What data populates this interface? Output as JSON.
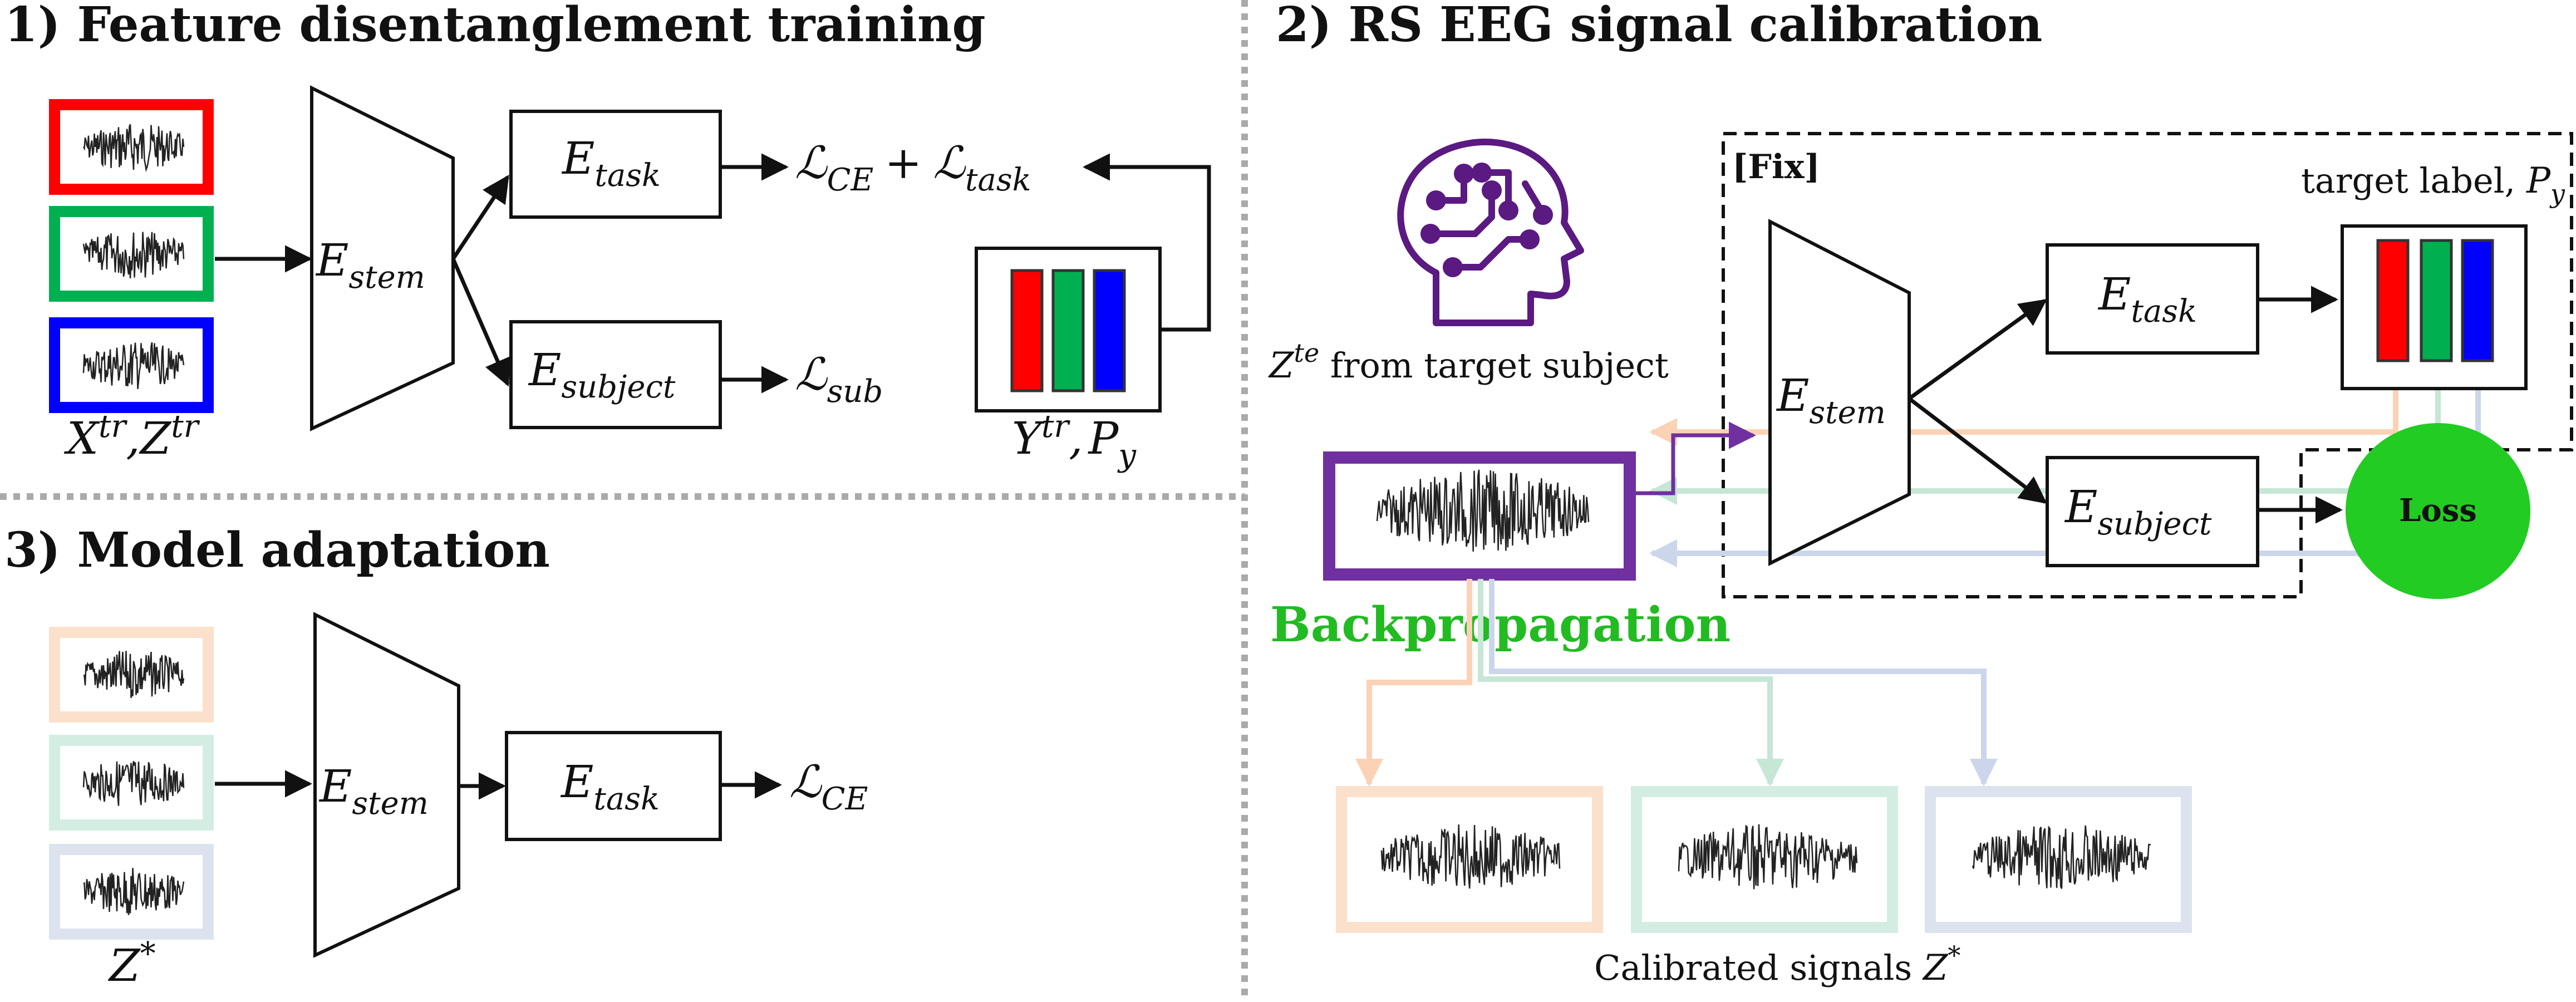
{
  "panels": {
    "p1_title": "1) Feature disentanglement training",
    "p2_title": "2) RS EEG signal calibration",
    "p3_title": "3) Model adaptation"
  },
  "colors": {
    "red": "#ff0000",
    "green": "#00b050",
    "blue": "#0000ff",
    "orange_light": "#fbe0cc",
    "green_light": "#d4ede2",
    "blue_light": "#dce3ef",
    "purple": "#7030a0",
    "loss_green": "#22cc22",
    "backprop_green": "#22bb22"
  },
  "labels": {
    "E": "E",
    "stem": "stem",
    "task": "task",
    "subject": "subject",
    "L": "ℒ",
    "CE": "CE",
    "sub": "sub",
    "plus": "+",
    "X": "X",
    "Z": "Z",
    "Y": "Y",
    "P": "P",
    "y": "y",
    "tr": "tr",
    "te": "te",
    "star": "*",
    "comma": ",",
    "from_target": " from target subject",
    "target_label": "target label, ",
    "fix": "[Fix]",
    "loss": "Loss",
    "backprop": "Backpropagation",
    "calibrated": "Calibrated signals "
  },
  "icons": {
    "brain": "head-circuit-icon",
    "signal": "eeg-waveform-icon"
  }
}
